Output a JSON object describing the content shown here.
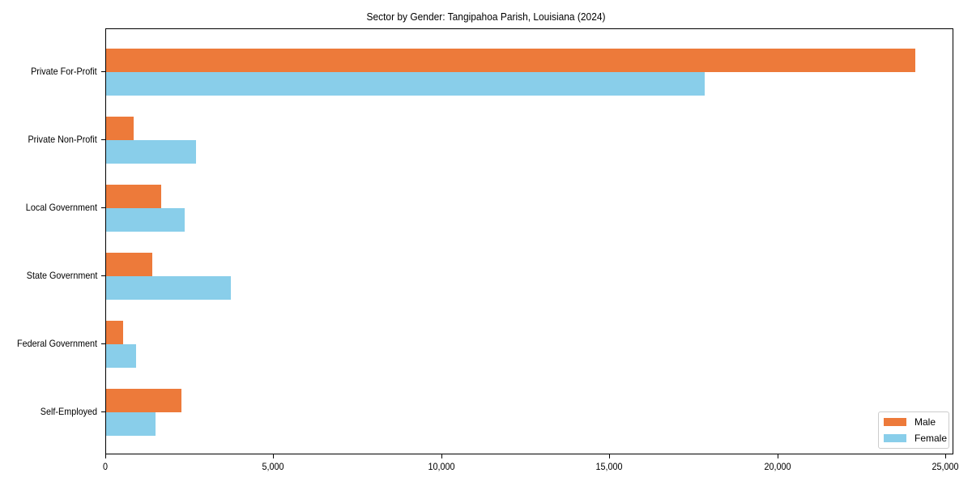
{
  "chart_data": {
    "type": "bar",
    "orientation": "horizontal",
    "title": "Sector by Gender: Tangipahoa Parish, Louisiana (2024)",
    "xlabel": "",
    "ylabel": "",
    "categories": [
      "Private For-Profit",
      "Private Non-Profit",
      "Local Government",
      "State Government",
      "Federal Government",
      "Self-Employed"
    ],
    "series": [
      {
        "name": "Male",
        "color": "#ED7A3A",
        "values": [
          24080,
          820,
          1640,
          1370,
          500,
          2240
        ]
      },
      {
        "name": "Female",
        "color": "#89CEEA",
        "values": [
          17815,
          2680,
          2340,
          3710,
          890,
          1470
        ]
      }
    ],
    "xlim": [
      0,
      25300
    ],
    "xticks": [
      0,
      5000,
      10000,
      15000,
      20000,
      25000
    ],
    "xtick_labels": [
      "0",
      "5,000",
      "10,000",
      "15,000",
      "20,000",
      "25,000"
    ],
    "grid": false,
    "legend_position": "lower right"
  }
}
